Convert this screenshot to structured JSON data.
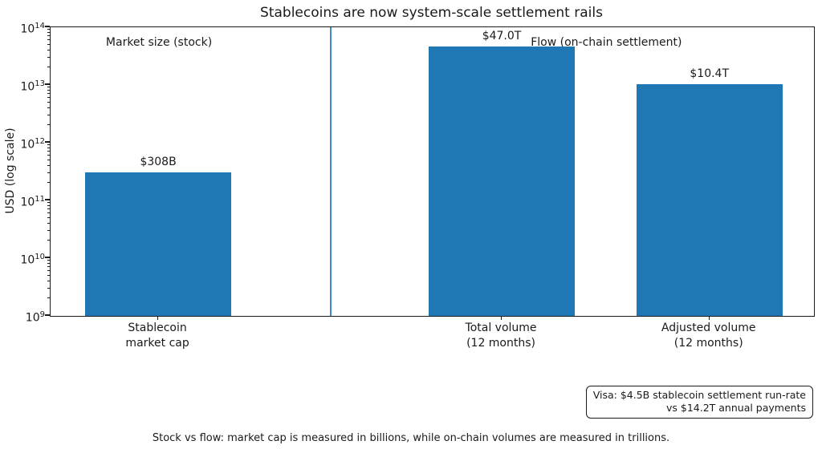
{
  "title": "Stablecoins are now system-scale settlement rails",
  "chart_data": {
    "type": "bar",
    "categories": [
      [
        "Stablecoin",
        "market cap"
      ],
      [
        "Total volume",
        "(12 months)"
      ],
      [
        "Adjusted volume",
        "(12 months)"
      ]
    ],
    "values": [
      308000000000,
      47000000000000,
      10400000000000
    ],
    "value_labels": [
      "$308B",
      "$47.0T",
      "$10.4T"
    ],
    "title": "Stablecoins are now system-scale settlement rails",
    "xlabel": "",
    "ylabel": "USD (log scale)",
    "ylim": [
      1000000000,
      100000000000000
    ],
    "yscale": "log",
    "grid": false,
    "bar_color": "#1f77b4",
    "divider_color": "rgba(31,119,180,0.85)",
    "group_labels": [
      {
        "label": "Market size (stock)"
      },
      {
        "label": "Flow (on-chain settlement)"
      }
    ],
    "annotation": {
      "line1": "Visa: $4.5B stablecoin settlement run-rate",
      "line2": "vs $14.2T annual payments"
    },
    "caption": "Stock vs flow: market cap is measured in billions, while on-chain volumes are measured in trillions."
  }
}
